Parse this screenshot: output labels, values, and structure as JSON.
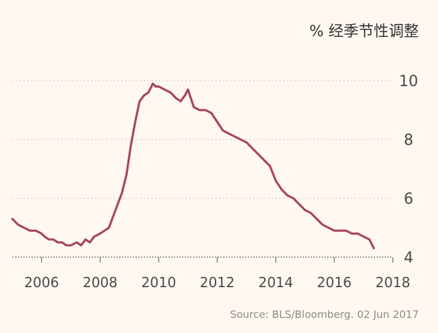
{
  "chart_data": {
    "type": "line",
    "unit_label": "% 经季节性调整",
    "source": "Source: BLS/Bloomberg. 02 Jun 2017",
    "xlim": [
      2005.0,
      2018.0
    ],
    "ylim": [
      4,
      10
    ],
    "x_ticks": [
      2006,
      2008,
      2010,
      2012,
      2014,
      2016,
      2018
    ],
    "x_tick_labels": [
      "2006",
      "2008",
      "2010",
      "2012",
      "2014",
      "2016",
      "2018"
    ],
    "y_ticks": [
      4,
      6,
      8,
      10
    ],
    "y_tick_labels": [
      "4",
      "6",
      "8",
      "10"
    ],
    "grid": "horizontal dotted",
    "line_color": "#a6465c",
    "series": [
      {
        "x": [
          2005.0,
          2005.1,
          2005.2,
          2005.4,
          2005.6,
          2005.8,
          2006.0,
          2006.1,
          2006.25,
          2006.4,
          2006.55,
          2006.7,
          2006.85,
          2007.0,
          2007.2,
          2007.35,
          2007.5,
          2007.65,
          2007.8,
          2008.0,
          2008.15,
          2008.3,
          2008.45,
          2008.6,
          2008.75,
          2008.9,
          2009.05,
          2009.2,
          2009.35,
          2009.5,
          2009.65,
          2009.8,
          2009.9,
          2010.0,
          2010.2,
          2010.4,
          2010.6,
          2010.75,
          2010.9,
          2011.0,
          2011.2,
          2011.4,
          2011.6,
          2011.8,
          2012.0,
          2012.2,
          2012.4,
          2012.6,
          2012.8,
          2013.0,
          2013.2,
          2013.4,
          2013.6,
          2013.8,
          2014.0,
          2014.2,
          2014.4,
          2014.6,
          2014.8,
          2015.0,
          2015.2,
          2015.4,
          2015.6,
          2015.8,
          2016.0,
          2016.2,
          2016.4,
          2016.6,
          2016.8,
          2017.0,
          2017.2,
          2017.35
        ],
        "values": [
          5.3,
          5.2,
          5.1,
          5.0,
          4.9,
          4.9,
          4.8,
          4.7,
          4.6,
          4.6,
          4.5,
          4.5,
          4.4,
          4.4,
          4.5,
          4.4,
          4.6,
          4.5,
          4.7,
          4.8,
          4.9,
          5.0,
          5.4,
          5.8,
          6.2,
          6.8,
          7.8,
          8.6,
          9.3,
          9.5,
          9.6,
          9.9,
          9.8,
          9.8,
          9.7,
          9.6,
          9.4,
          9.3,
          9.5,
          9.7,
          9.1,
          9.0,
          9.0,
          8.9,
          8.6,
          8.3,
          8.2,
          8.1,
          8.0,
          7.9,
          7.7,
          7.5,
          7.3,
          7.1,
          6.6,
          6.3,
          6.1,
          6.0,
          5.8,
          5.6,
          5.5,
          5.3,
          5.1,
          5.0,
          4.9,
          4.9,
          4.9,
          4.8,
          4.8,
          4.7,
          4.6,
          4.3
        ]
      }
    ]
  }
}
